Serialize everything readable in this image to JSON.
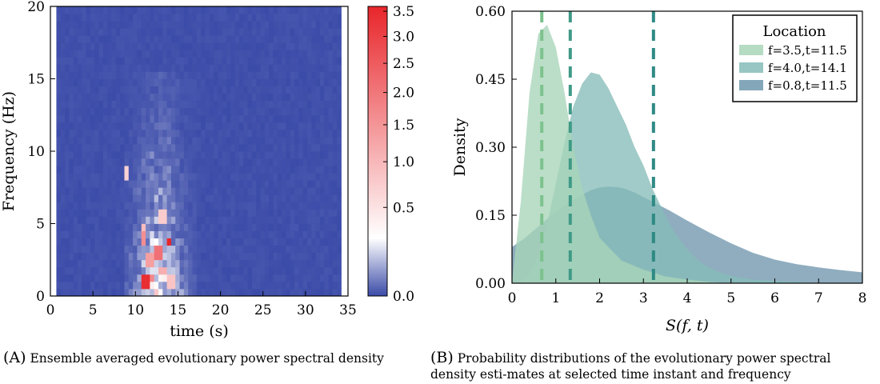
{
  "chart_data": [
    {
      "type": "heatmap",
      "xlabel": "time (s)",
      "ylabel": "Frequency (Hz)",
      "xlim": [
        0,
        35
      ],
      "ylim": [
        0,
        20
      ],
      "xticks": [
        "0",
        "5",
        "10",
        "15",
        "20",
        "25",
        "30",
        "35"
      ],
      "yticks": [
        "0",
        "5",
        "10",
        "15",
        "20"
      ],
      "colorbar": {
        "ticks": [
          "0.0",
          "0.5",
          "1.0",
          "1.5",
          "2.0",
          "2.5",
          "3.0",
          "3.5"
        ],
        "range": [
          0,
          3.6
        ],
        "colors": [
          "#3b4ba8",
          "#ffffff",
          "#e8262b"
        ]
      },
      "data_extent": {
        "time": [
          0.7,
          34
        ],
        "frequency": [
          0,
          20
        ]
      },
      "active_region": {
        "time": [
          8.5,
          17
        ],
        "frequency": [
          0,
          15.5
        ]
      },
      "hotspots": [
        {
          "time": 11.3,
          "frequency": 0.9,
          "value": 3.5
        },
        {
          "time": 13.9,
          "frequency": 3.7,
          "value": 3.6
        },
        {
          "time": 12.6,
          "frequency": 3.1,
          "value": 2.6
        },
        {
          "time": 11.0,
          "frequency": 3.9,
          "value": 2.2
        },
        {
          "time": 12.0,
          "frequency": 1.2,
          "value": 2.3
        },
        {
          "time": 11.6,
          "frequency": 2.6,
          "value": 2.0
        },
        {
          "time": 13.1,
          "frequency": 1.8,
          "value": 1.8
        },
        {
          "time": 10.9,
          "frequency": 4.6,
          "value": 1.6
        },
        {
          "time": 8.9,
          "frequency": 8.6,
          "value": 1.3
        },
        {
          "time": 13.3,
          "frequency": 5.4,
          "value": 1.4
        },
        {
          "time": 14.3,
          "frequency": 1.1,
          "value": 1.5
        }
      ]
    },
    {
      "type": "area",
      "xlabel": "S(f, t)",
      "ylabel": "Density",
      "xlim": [
        0,
        8
      ],
      "ylim": [
        0,
        0.6
      ],
      "xticks": [
        "0",
        "1",
        "2",
        "3",
        "4",
        "5",
        "6",
        "7",
        "8"
      ],
      "yticks": [
        "0.00",
        "0.15",
        "0.30",
        "0.45",
        "0.60"
      ],
      "legend": {
        "title": "Location",
        "position": "top-right"
      },
      "series": [
        {
          "name": "f=3.5,t=11.5",
          "color": "#a8d5b9",
          "mean": 0.68,
          "x": [
            0,
            0.2,
            0.4,
            0.6,
            0.8,
            1.0,
            1.2,
            1.4,
            1.6,
            1.8,
            2.0,
            2.5,
            3.0,
            3.5,
            4.0,
            4.5,
            5.0
          ],
          "y": [
            0.0,
            0.18,
            0.42,
            0.55,
            0.57,
            0.52,
            0.42,
            0.3,
            0.21,
            0.15,
            0.1,
            0.05,
            0.03,
            0.015,
            0.008,
            0.003,
            0.0
          ]
        },
        {
          "name": "f=4.0,t=14.1",
          "color": "#86bcb8",
          "mean": 1.33,
          "x": [
            0.2,
            0.4,
            0.6,
            0.8,
            1.0,
            1.2,
            1.4,
            1.6,
            1.8,
            2.0,
            2.2,
            2.4,
            2.6,
            2.8,
            3.0,
            3.2,
            3.4,
            3.6,
            3.8,
            4.0,
            4.2,
            4.4,
            4.6,
            4.8,
            5.0,
            5.5,
            6.0,
            6.5,
            7.0
          ],
          "y": [
            0.0,
            0.02,
            0.06,
            0.13,
            0.22,
            0.31,
            0.39,
            0.44,
            0.465,
            0.46,
            0.43,
            0.39,
            0.35,
            0.3,
            0.26,
            0.21,
            0.17,
            0.13,
            0.1,
            0.075,
            0.055,
            0.04,
            0.03,
            0.022,
            0.016,
            0.008,
            0.005,
            0.003,
            0.0
          ]
        },
        {
          "name": "f=0.8,t=11.5",
          "color": "#6f96ad",
          "mean": 3.23,
          "x": [
            0,
            0.3,
            0.6,
            0.9,
            1.2,
            1.5,
            1.8,
            2.0,
            2.2,
            2.4,
            2.6,
            2.8,
            3.0,
            3.3,
            3.6,
            4.0,
            4.5,
            5.0,
            5.5,
            6.0,
            6.5,
            7.0,
            7.5,
            8.0
          ],
          "y": [
            0.08,
            0.1,
            0.125,
            0.15,
            0.172,
            0.19,
            0.205,
            0.211,
            0.213,
            0.212,
            0.208,
            0.2,
            0.19,
            0.175,
            0.16,
            0.138,
            0.112,
            0.088,
            0.067,
            0.052,
            0.042,
            0.035,
            0.029,
            0.024
          ]
        }
      ]
    }
  ],
  "captions": {
    "a_tag": "(A)",
    "a_text": "Ensemble averaged evolutionary power spectral density",
    "b_tag": "(B)",
    "b_text": "Probability distributions of the evolutionary power spectral density esti-mates at selected time instant and frequency"
  }
}
